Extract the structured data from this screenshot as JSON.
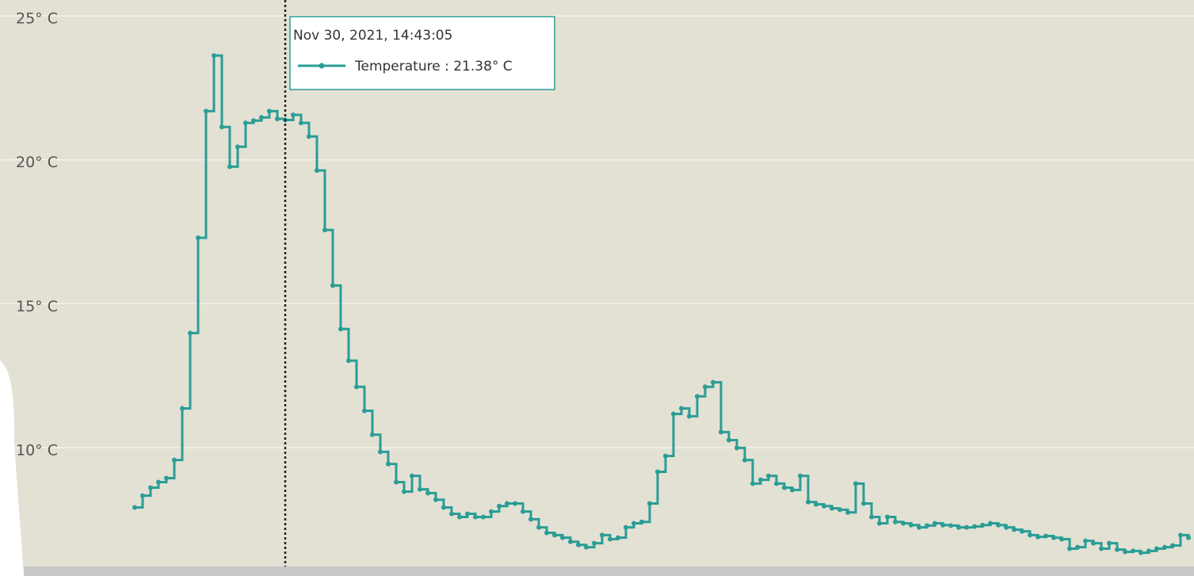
{
  "chart_data": {
    "type": "line",
    "series": [
      {
        "name": "Temperature",
        "color": "#2a9d96",
        "values": [
          7.92,
          8.33,
          8.61,
          8.8,
          8.94,
          9.57,
          11.36,
          13.98,
          17.29,
          21.69,
          23.62,
          21.14,
          19.76,
          20.45,
          21.28,
          21.36,
          21.47,
          21.69,
          21.42,
          21.38,
          21.56,
          21.28,
          20.81,
          19.63,
          17.56,
          15.63,
          14.12,
          13.02,
          12.11,
          11.28,
          10.45,
          9.85,
          9.43,
          8.8,
          8.47,
          9.02,
          8.55,
          8.42,
          8.19,
          7.92,
          7.7,
          7.59,
          7.7,
          7.59,
          7.59,
          7.78,
          7.97,
          8.06,
          8.06,
          7.78,
          7.51,
          7.23,
          7.04,
          6.96,
          6.87,
          6.73,
          6.62,
          6.54,
          6.68,
          6.96,
          6.82,
          6.87,
          7.23,
          7.37,
          7.42,
          8.06,
          9.16,
          9.71,
          11.17,
          11.36,
          11.09,
          11.78,
          12.11,
          12.27,
          10.54,
          10.26,
          9.99,
          9.57,
          8.75,
          8.88,
          9.02,
          8.75,
          8.61,
          8.53,
          9.02,
          8.11,
          8.03,
          7.97,
          7.89,
          7.84,
          7.75,
          8.75,
          8.06,
          7.59,
          7.37,
          7.59,
          7.42,
          7.37,
          7.31,
          7.23,
          7.29,
          7.37,
          7.31,
          7.29,
          7.23,
          7.23,
          7.26,
          7.31,
          7.37,
          7.31,
          7.23,
          7.15,
          7.09,
          6.96,
          6.9,
          6.93,
          6.87,
          6.82,
          6.49,
          6.54,
          6.76,
          6.68,
          6.49,
          6.68,
          6.46,
          6.38,
          6.41,
          6.35,
          6.41,
          6.49,
          6.54,
          6.6,
          6.96,
          6.87
        ]
      }
    ],
    "ylim": [
      5.54,
      25.55
    ],
    "yticks": [
      {
        "value": 10,
        "label": "10° C"
      },
      {
        "value": 15,
        "label": "15° C"
      },
      {
        "value": 20,
        "label": "20° C"
      },
      {
        "value": 25,
        "label": "25° C"
      }
    ],
    "grid": true,
    "tooltip": {
      "title": "Nov 30, 2021, 14:43:05",
      "text": "Temperature : 21.38° C",
      "value": 21.38
    }
  }
}
